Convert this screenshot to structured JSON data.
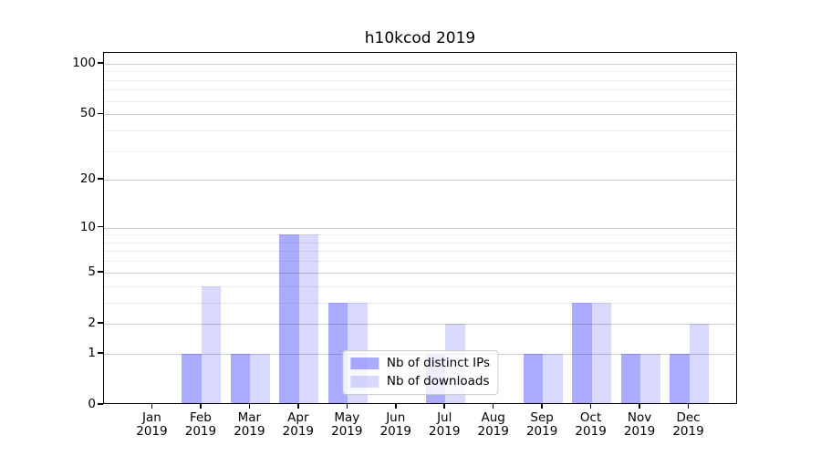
{
  "chart_data": {
    "type": "bar",
    "title": "h10kcod 2019",
    "categories": [
      "Jan 2019",
      "Feb 2019",
      "Mar 2019",
      "Apr 2019",
      "May 2019",
      "Jun 2019",
      "Jul 2019",
      "Aug 2019",
      "Sep 2019",
      "Oct 2019",
      "Nov 2019",
      "Dec 2019"
    ],
    "series": [
      {
        "name": "Nb of distinct IPs",
        "color": "rgba(0,0,255,0.33)",
        "values": [
          0,
          1,
          1,
          9,
          3,
          0,
          1,
          0,
          1,
          3,
          1,
          1
        ]
      },
      {
        "name": "Nb of downloads",
        "color": "rgba(0,0,255,0.15)",
        "values": [
          0,
          4,
          1,
          9,
          3,
          0,
          2,
          0,
          1,
          3,
          1,
          2
        ]
      }
    ],
    "xlabel": "",
    "ylabel": "",
    "yscale": "log1p",
    "yticks": [
      0,
      1,
      2,
      5,
      10,
      20,
      50,
      100
    ],
    "minor_grid_values": [
      3,
      4,
      6,
      7,
      8,
      9,
      30,
      40,
      60,
      70,
      80,
      90
    ],
    "ylim": [
      0,
      116
    ],
    "grid": true,
    "legend_position": "lower center",
    "major_grid_color": "#cccccc",
    "minor_grid_color": "#ededed"
  }
}
